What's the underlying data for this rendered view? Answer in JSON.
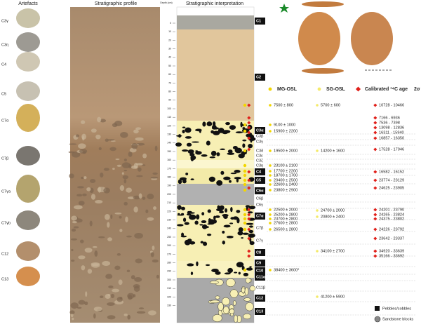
{
  "headings": {
    "artefacts": "Artefacts",
    "profile": "Stratigraphic profile",
    "depth": "Depth (cm)",
    "interpretation": "Stratigraphic interpretation"
  },
  "depth_ticks": [
    0,
    10,
    20,
    30,
    40,
    50,
    60,
    70,
    80,
    90,
    100,
    110,
    120,
    130,
    140,
    150,
    160,
    170,
    180,
    190,
    200,
    210,
    220,
    230,
    240,
    250,
    260,
    270,
    280,
    290,
    300,
    310,
    320,
    330
  ],
  "artefacts": [
    "C3γ",
    "C3η",
    "C4",
    "C5",
    "C7α",
    "C7β",
    "C7γa",
    "C7γb",
    "C12",
    "C13"
  ],
  "layers": [
    {
      "label": "C1",
      "boxed": true
    },
    {
      "label": "C2",
      "boxed": true
    },
    {
      "label": "C3α",
      "boxed": true
    },
    {
      "label": "C3β",
      "boxed": false
    },
    {
      "label": "C3γ",
      "boxed": false
    },
    {
      "label": "C3δ",
      "boxed": false
    },
    {
      "label": "C3ε",
      "boxed": false
    },
    {
      "label": "C3ζ",
      "boxed": false
    },
    {
      "label": "C3η",
      "boxed": false
    },
    {
      "label": "C4",
      "boxed": true
    },
    {
      "label": "C5",
      "boxed": true
    },
    {
      "label": "C6α",
      "boxed": true
    },
    {
      "label": "C6β",
      "boxed": false
    },
    {
      "label": "C6γ",
      "boxed": false
    },
    {
      "label": "C7α",
      "boxed": true
    },
    {
      "label": "C7β",
      "boxed": false
    },
    {
      "label": "C7γ",
      "boxed": false
    },
    {
      "label": "C8",
      "boxed": true
    },
    {
      "label": "C9",
      "boxed": true
    },
    {
      "label": "C10",
      "boxed": true
    },
    {
      "label": "C11α",
      "boxed": true
    },
    {
      "label": "C11β",
      "boxed": false
    },
    {
      "label": "C12",
      "boxed": true
    },
    {
      "label": "C13",
      "boxed": true
    }
  ],
  "legend": {
    "mg_osl": "MG-OSL",
    "sg_osl": "SG-OSL",
    "c14": "Calibrated ¹⁴C age",
    "sigma": "2σ",
    "pebbles": "Pebbles/cobbles",
    "blocks": "Sandstone blocks"
  },
  "mg_osl": [
    "7500 ± 800",
    "9100 ± 1000",
    "15900 ± 2200",
    "19500 ± 2000",
    "23100 ± 2100",
    "17700 ± 2200",
    "18700 ± 1700",
    "20400 ± 2500",
    "22600 ± 2400",
    "23800 ± 2900",
    "22500 ± 2000",
    "25200 ± 2800",
    "23700 ± 2800",
    "27600 ± 2800",
    "26500 ± 2800",
    "38400 ± 3600*"
  ],
  "sg_osl": [
    "5700 ± 600",
    "14200 ± 1600",
    "24700 ± 2000",
    "20800 ± 2400",
    "34100 ± 2700",
    "41200 ± 5900"
  ],
  "c14": [
    "10728 - 10466",
    "7166 - 6936",
    "7536 - 7398",
    "13098 - 12836",
    "16311 - 15940",
    "16857 - 16350",
    "17528 - 17046",
    "16582 - 16152",
    "23774 - 23129",
    "24625 - 23905",
    "24201 - 23790",
    "24265 - 23824",
    "24375 - 23802",
    "24226 - 23792",
    "23642 - 23337",
    "34920 - 33639",
    "35166 - 33692"
  ]
}
